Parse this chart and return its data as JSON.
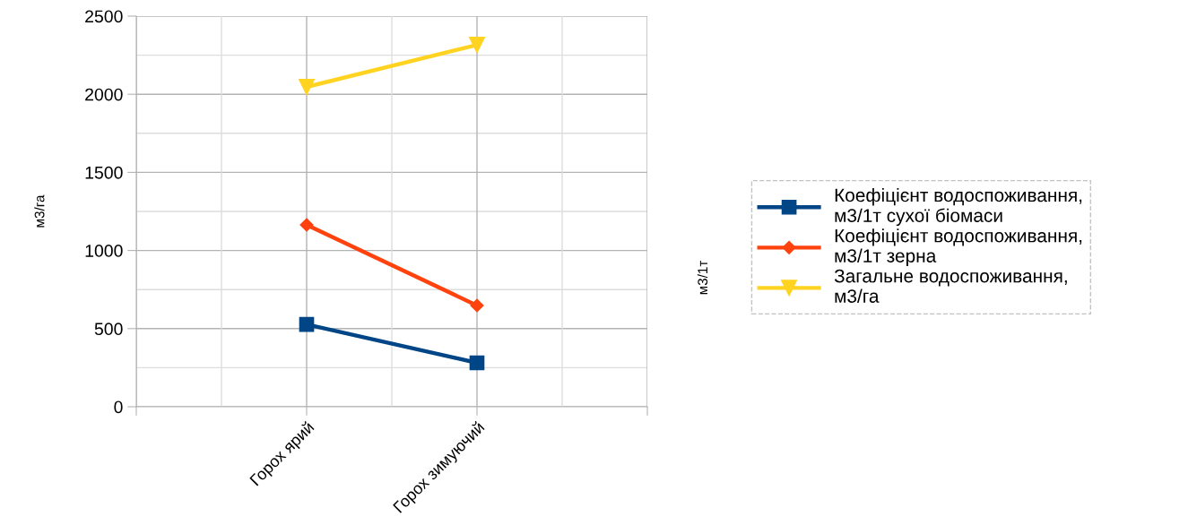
{
  "chart_data": {
    "type": "line",
    "categories": [
      null,
      "Горох ярий",
      "Горох зимуючий",
      null
    ],
    "series": [
      {
        "name": "Коефіцієнт водоспоживання,\nм3/1т сухої біомаси",
        "color": "#004586",
        "marker": "square",
        "values": [
          null,
          527,
          281,
          null
        ]
      },
      {
        "name": "Коефіцієнт водоспоживання,\nм3/1т зерна",
        "color": "#ff420e",
        "marker": "diamond",
        "values": [
          null,
          1164,
          648,
          null
        ]
      },
      {
        "name": "Загальне водоспоживання,\nм3/га",
        "color": "#ffd320",
        "marker": "triangle",
        "values": [
          null,
          2047,
          2316,
          null
        ]
      }
    ],
    "ylabel": "м3/га",
    "y2label": "м3/1т",
    "ylim": [
      0,
      2500
    ],
    "yticks": [
      0,
      500,
      1000,
      1500,
      2000,
      2500
    ],
    "grid": true,
    "legend": "right",
    "line_style": "solid"
  }
}
